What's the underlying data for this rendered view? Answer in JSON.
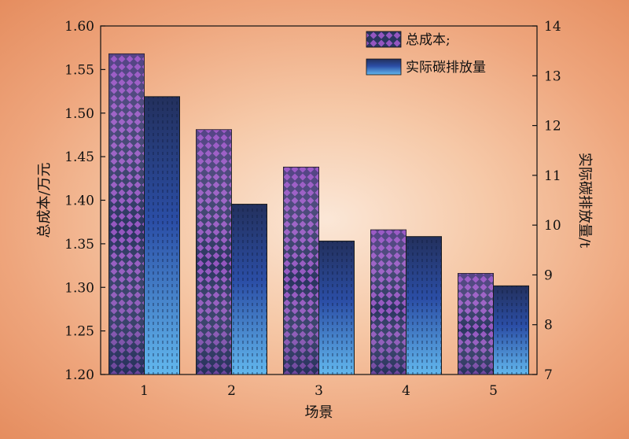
{
  "chart_data": {
    "type": "bar",
    "categories": [
      "1",
      "2",
      "3",
      "4",
      "5"
    ],
    "xlabel": "场景",
    "ylabel_left": "总成本/万元",
    "ylabel_right": "实际碳排放量/t",
    "ylim_left": [
      1.2,
      1.6
    ],
    "ylim_right": [
      7,
      14
    ],
    "yticks_left": [
      "1.20",
      "1.25",
      "1.30",
      "1.35",
      "1.40",
      "1.45",
      "1.50",
      "1.55",
      "1.60"
    ],
    "yticks_right": [
      "7",
      "8",
      "9",
      "10",
      "11",
      "12",
      "13",
      "14"
    ],
    "legend_position": "top-right",
    "grid": false,
    "series": [
      {
        "name": "总成本;",
        "axis": "left",
        "values": [
          1.568,
          1.481,
          1.438,
          1.366,
          1.316
        ],
        "pattern": "diamonds-purple"
      },
      {
        "name": "实际碳排放量",
        "axis": "right",
        "values": [
          12.58,
          10.42,
          9.68,
          9.77,
          8.78
        ],
        "pattern": "gradient-blue"
      }
    ],
    "colors": {
      "purple": "#8e4bb3",
      "navy": "#24305c",
      "blue": "#2b4fa8",
      "light_blue": "#5fb4ea"
    }
  }
}
